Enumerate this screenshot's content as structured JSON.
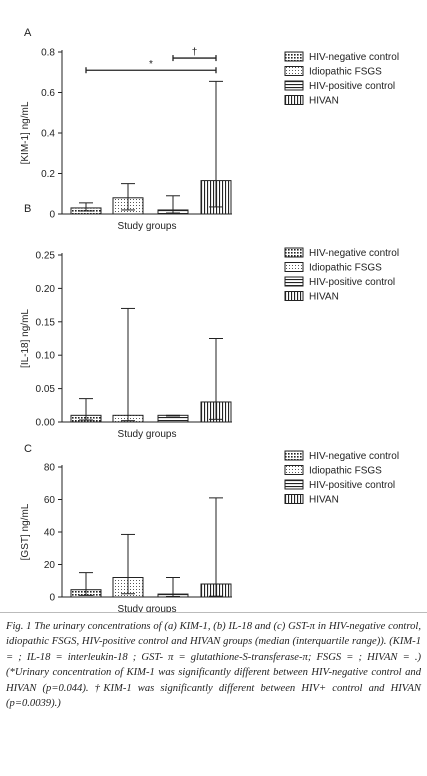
{
  "legend_labels": [
    "HIV-negative control",
    "Idiopathic FSGS",
    "HIV-positive control",
    "HIVAN"
  ],
  "chart_data": [
    {
      "type": "bar",
      "panel": "A",
      "categories": [
        "HIV-negative control",
        "Idiopathic FSGS",
        "HIV-positive control",
        "HIVAN"
      ],
      "values": [
        0.03,
        0.08,
        0.02,
        0.165
      ],
      "error_low": [
        0.015,
        0.02,
        0.005,
        0.035
      ],
      "error_high": [
        0.055,
        0.15,
        0.09,
        0.655
      ],
      "ylim": [
        0,
        0.8
      ],
      "yticks": [
        0,
        0.2,
        0.4,
        0.6,
        0.8
      ],
      "ytick_labels": [
        "0",
        "0.2",
        "0.4",
        "0.6",
        "0.8"
      ],
      "xlabel": "Study groups",
      "ylabel": "[KIM-1] ng/mL",
      "legend_position": "right",
      "grid": false,
      "annotations": [
        {
          "text": "*",
          "from": 0,
          "to": 3,
          "y": 0.71
        },
        {
          "text": "†",
          "from": 2,
          "to": 3,
          "y": 0.77
        }
      ]
    },
    {
      "type": "bar",
      "panel": "B",
      "categories": [
        "HIV-negative control",
        "Idiopathic FSGS",
        "HIV-positive control",
        "HIVAN"
      ],
      "values": [
        0.01,
        0.01,
        0.01,
        0.03
      ],
      "error_low": [
        0.003,
        0.002,
        0.009,
        0.004
      ],
      "error_high": [
        0.035,
        0.17,
        0.01,
        0.125
      ],
      "ylim": [
        0,
        0.25
      ],
      "yticks": [
        0,
        0.05,
        0.1,
        0.15,
        0.2,
        0.25
      ],
      "ytick_labels": [
        "0.00",
        "0.05",
        "0.10",
        "0.15",
        "0.20",
        "0.25"
      ],
      "xlabel": "Study groups",
      "ylabel": "[IL-18] ng/mL",
      "legend_position": "right",
      "grid": false
    },
    {
      "type": "bar",
      "panel": "C",
      "categories": [
        "HIV-negative control",
        "Idiopathic FSGS",
        "HIV-positive control",
        "HIVAN"
      ],
      "values": [
        4.5,
        12,
        1.8,
        8
      ],
      "error_low": [
        1,
        2,
        0.3,
        0.5
      ],
      "error_high": [
        15,
        38.5,
        12,
        61
      ],
      "ylim": [
        0,
        80
      ],
      "yticks": [
        0,
        20,
        40,
        60,
        80
      ],
      "ytick_labels": [
        "0",
        "20",
        "40",
        "60",
        "80"
      ],
      "xlabel": "Study groups",
      "ylabel": "[GST] ng/mL",
      "legend_position": "right",
      "grid": false
    }
  ],
  "caption": "Fig. 1 The urinary concentrations of (a) KIM-1, (b) IL-18 and (c) GST-π in HIV-negative control, idiopathic FSGS, HIV-positive control and HIVAN groups (median (interquartile range)). (KIM-1 = ; IL-18 = interleukin-18 ; GST- π = glutathione-S-transferase-π;  FSGS = ; HIVAN = .) (*Urinary concentration of KIM-1 was significantly different between HIV-negative control and HIVAN (p=0.044). †KIM-1 was significantly different between HIV+ control and HIVAN (p=0.0039).)"
}
